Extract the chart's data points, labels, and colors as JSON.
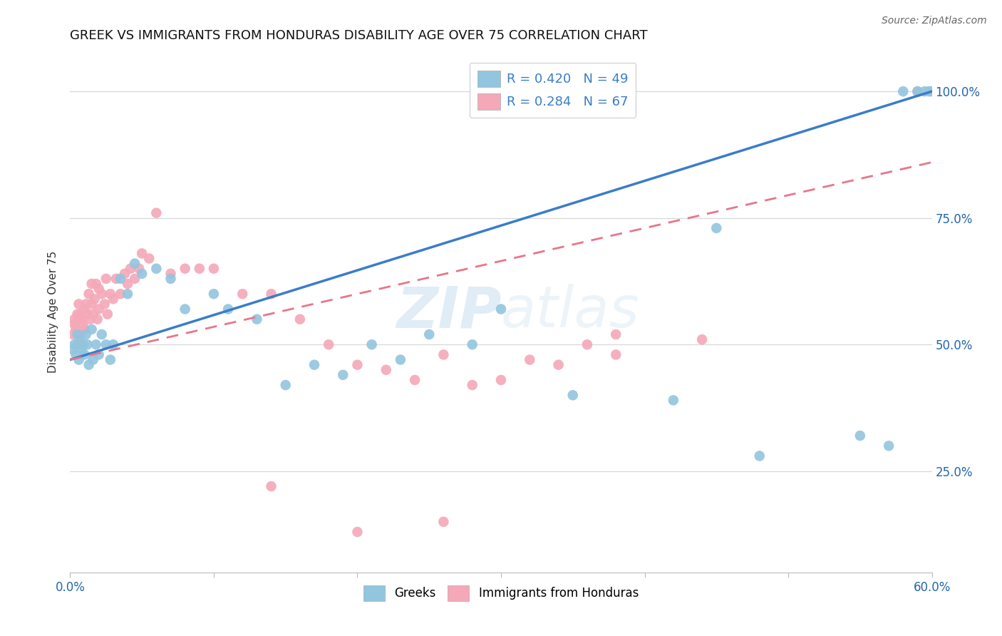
{
  "title": "GREEK VS IMMIGRANTS FROM HONDURAS DISABILITY AGE OVER 75 CORRELATION CHART",
  "source": "Source: ZipAtlas.com",
  "ylabel": "Disability Age Over 75",
  "xlim": [
    0.0,
    0.6
  ],
  "ylim": [
    0.05,
    1.08
  ],
  "xtick_vals": [
    0.0,
    0.1,
    0.2,
    0.3,
    0.4,
    0.5,
    0.6
  ],
  "xtick_labels": [
    "0.0%",
    "",
    "",
    "",
    "",
    "",
    "60.0%"
  ],
  "ytick_vals": [
    0.25,
    0.5,
    0.75,
    1.0
  ],
  "ytick_labels": [
    "25.0%",
    "50.0%",
    "75.0%",
    "100.0%"
  ],
  "blue_color": "#92c5de",
  "pink_color": "#f4a8b8",
  "blue_line_color": "#3a7dc9",
  "pink_line_color": "#e8768a",
  "legend_r_color": "#3a7dc9",
  "watermark_color": "#cce0f0",
  "blue_line_x0": 0.0,
  "blue_line_y0": 0.47,
  "blue_line_x1": 0.6,
  "blue_line_y1": 1.0,
  "pink_line_x0": 0.0,
  "pink_line_y0": 0.47,
  "pink_line_x1": 0.6,
  "pink_line_y1": 0.86,
  "blue_x": [
    0.002,
    0.003,
    0.004,
    0.005,
    0.006,
    0.007,
    0.008,
    0.009,
    0.01,
    0.011,
    0.012,
    0.013,
    0.015,
    0.016,
    0.018,
    0.02,
    0.022,
    0.025,
    0.028,
    0.03,
    0.035,
    0.04,
    0.045,
    0.05,
    0.06,
    0.07,
    0.08,
    0.1,
    0.11,
    0.13,
    0.15,
    0.17,
    0.19,
    0.21,
    0.23,
    0.25,
    0.28,
    0.3,
    0.35,
    0.42,
    0.45,
    0.48,
    0.55,
    0.57,
    0.58,
    0.59,
    0.595,
    0.598,
    0.6
  ],
  "blue_y": [
    0.49,
    0.5,
    0.48,
    0.52,
    0.47,
    0.51,
    0.49,
    0.5,
    0.48,
    0.52,
    0.5,
    0.46,
    0.53,
    0.47,
    0.5,
    0.48,
    0.52,
    0.5,
    0.47,
    0.5,
    0.63,
    0.6,
    0.66,
    0.64,
    0.65,
    0.63,
    0.57,
    0.6,
    0.57,
    0.55,
    0.42,
    0.46,
    0.44,
    0.5,
    0.47,
    0.52,
    0.5,
    0.57,
    0.4,
    0.39,
    0.73,
    0.28,
    0.32,
    0.3,
    1.0,
    1.0,
    1.0,
    1.0,
    1.0
  ],
  "pink_x": [
    0.002,
    0.003,
    0.003,
    0.004,
    0.005,
    0.005,
    0.006,
    0.006,
    0.007,
    0.007,
    0.008,
    0.008,
    0.009,
    0.01,
    0.01,
    0.011,
    0.012,
    0.013,
    0.014,
    0.015,
    0.015,
    0.016,
    0.017,
    0.018,
    0.019,
    0.02,
    0.02,
    0.022,
    0.024,
    0.025,
    0.026,
    0.028,
    0.03,
    0.032,
    0.035,
    0.038,
    0.04,
    0.042,
    0.045,
    0.048,
    0.05,
    0.055,
    0.06,
    0.07,
    0.08,
    0.09,
    0.1,
    0.12,
    0.14,
    0.16,
    0.18,
    0.2,
    0.22,
    0.24,
    0.26,
    0.28,
    0.3,
    0.32,
    0.34,
    0.36,
    0.38,
    0.14,
    0.2,
    0.26,
    0.38,
    0.44,
    0.59
  ],
  "pink_y": [
    0.52,
    0.54,
    0.55,
    0.53,
    0.56,
    0.5,
    0.55,
    0.58,
    0.52,
    0.56,
    0.5,
    0.55,
    0.54,
    0.57,
    0.53,
    0.58,
    0.56,
    0.6,
    0.55,
    0.58,
    0.62,
    0.56,
    0.59,
    0.62,
    0.55,
    0.57,
    0.61,
    0.6,
    0.58,
    0.63,
    0.56,
    0.6,
    0.59,
    0.63,
    0.6,
    0.64,
    0.62,
    0.65,
    0.63,
    0.65,
    0.68,
    0.67,
    0.76,
    0.64,
    0.65,
    0.65,
    0.65,
    0.6,
    0.6,
    0.55,
    0.5,
    0.46,
    0.45,
    0.43,
    0.48,
    0.42,
    0.43,
    0.47,
    0.46,
    0.5,
    0.48,
    0.22,
    0.13,
    0.15,
    0.52,
    0.51,
    1.0
  ]
}
